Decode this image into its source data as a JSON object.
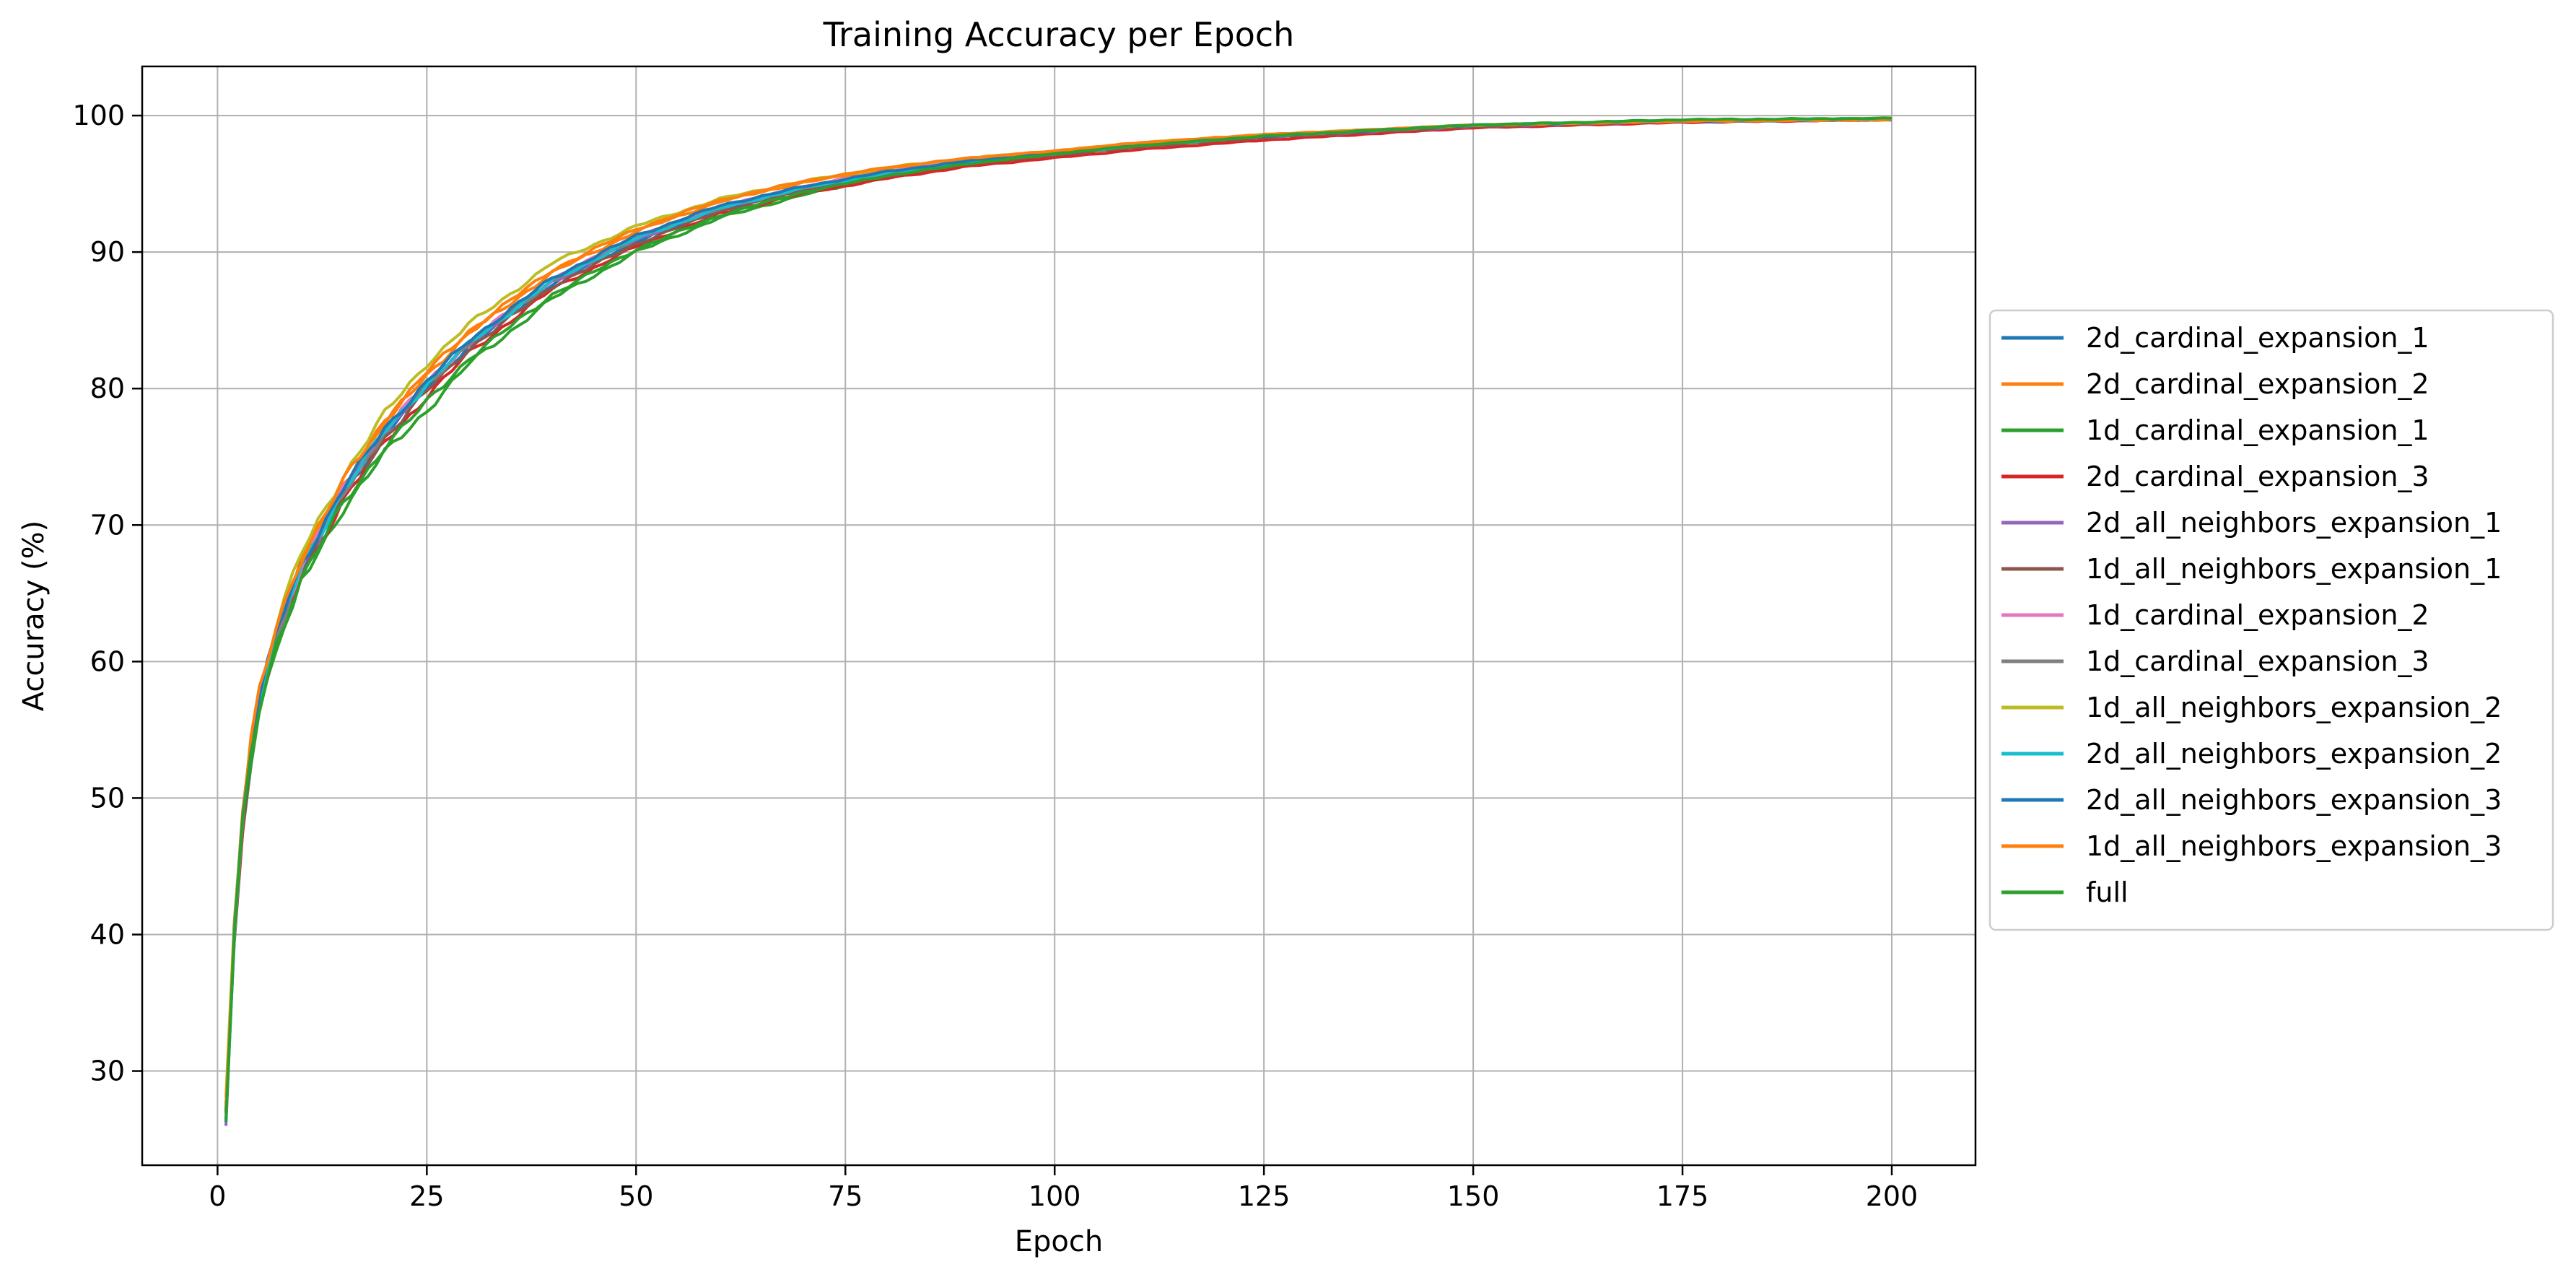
{
  "chart_data": {
    "type": "line",
    "title": "Training Accuracy per Epoch",
    "xlabel": "Epoch",
    "ylabel": "Accuracy (%)",
    "xlim": [
      -9,
      210
    ],
    "ylim": [
      23.1,
      103.6
    ],
    "xticks": [
      0,
      25,
      50,
      75,
      100,
      125,
      150,
      175,
      200
    ],
    "yticks": [
      30,
      40,
      50,
      60,
      70,
      80,
      90,
      100
    ],
    "grid": true,
    "legend_position": "outside-right",
    "x": [
      1,
      2,
      3,
      4,
      5,
      7,
      10,
      15,
      20,
      25,
      30,
      40,
      50,
      60,
      70,
      80,
      90,
      100,
      110,
      125,
      150,
      175,
      200
    ],
    "series": [
      {
        "name": "2d_cardinal_expansion_1",
        "color": "#1f77b4",
        "values": [
          26.6,
          40.2,
          48.2,
          53.5,
          57.0,
          61.7,
          66.7,
          72.3,
          76.7,
          80.1,
          83.1,
          87.7,
          90.8,
          93.1,
          94.6,
          95.7,
          96.6,
          97.2,
          97.8,
          98.5,
          99.3,
          99.6,
          99.7
        ]
      },
      {
        "name": "2d_cardinal_expansion_2",
        "color": "#ff7f0e",
        "values": [
          27.0,
          40.6,
          48.6,
          54.0,
          57.5,
          62.3,
          67.4,
          73.0,
          77.5,
          81.0,
          84.0,
          88.5,
          91.5,
          93.7,
          95.1,
          96.1,
          96.9,
          97.4,
          98.0,
          98.6,
          99.3,
          99.6,
          99.7
        ]
      },
      {
        "name": "1d_cardinal_expansion_1",
        "color": "#2ca02c",
        "values": [
          26.8,
          40.0,
          47.8,
          53.0,
          56.4,
          61.0,
          65.8,
          71.2,
          75.3,
          78.4,
          81.8,
          86.6,
          90.0,
          92.5,
          94.2,
          95.5,
          96.4,
          97.1,
          97.7,
          98.4,
          99.2,
          99.6,
          99.8
        ]
      },
      {
        "name": "2d_cardinal_expansion_3",
        "color": "#d62728",
        "values": [
          26.9,
          40.1,
          48.0,
          53.2,
          56.7,
          61.4,
          66.3,
          71.8,
          76.1,
          79.4,
          82.6,
          87.3,
          90.4,
          92.8,
          94.3,
          95.4,
          96.3,
          96.9,
          97.5,
          98.2,
          99.1,
          99.5,
          99.7
        ]
      },
      {
        "name": "2d_all_neighbors_expansion_1",
        "color": "#9467bd",
        "values": [
          27.0,
          40.3,
          48.3,
          53.6,
          57.1,
          61.8,
          66.8,
          72.4,
          76.8,
          80.2,
          83.2,
          87.8,
          90.9,
          93.2,
          94.7,
          95.8,
          96.6,
          97.2,
          97.8,
          98.4,
          99.2,
          99.6,
          99.7
        ]
      },
      {
        "name": "1d_all_neighbors_expansion_1",
        "color": "#8c564b",
        "values": [
          26.9,
          40.2,
          48.1,
          53.4,
          56.9,
          61.6,
          66.6,
          72.1,
          76.4,
          79.8,
          82.9,
          87.5,
          90.6,
          93.0,
          94.5,
          95.6,
          96.5,
          97.1,
          97.7,
          98.4,
          99.2,
          99.6,
          99.7
        ]
      },
      {
        "name": "1d_cardinal_expansion_2",
        "color": "#e377c2",
        "values": [
          27.1,
          40.4,
          48.4,
          53.7,
          57.2,
          62.0,
          67.0,
          72.6,
          77.0,
          80.4,
          83.4,
          88.0,
          91.1,
          93.3,
          94.8,
          95.9,
          96.7,
          97.3,
          97.9,
          98.5,
          99.3,
          99.6,
          99.7
        ]
      },
      {
        "name": "1d_cardinal_expansion_3",
        "color": "#7f7f7f",
        "values": [
          27.0,
          40.3,
          48.2,
          53.5,
          57.0,
          61.8,
          66.8,
          72.4,
          76.8,
          80.3,
          83.3,
          87.9,
          91.0,
          93.2,
          94.7,
          95.8,
          96.6,
          97.2,
          97.8,
          98.5,
          99.3,
          99.6,
          99.7
        ]
      },
      {
        "name": "1d_all_neighbors_expansion_2",
        "color": "#bcbd22",
        "values": [
          27.2,
          40.8,
          48.9,
          54.3,
          57.9,
          62.8,
          67.9,
          73.6,
          78.2,
          81.8,
          84.7,
          89.2,
          91.9,
          93.9,
          95.2,
          96.2,
          96.9,
          97.4,
          98.0,
          98.6,
          99.3,
          99.6,
          99.7
        ]
      },
      {
        "name": "2d_all_neighbors_expansion_2",
        "color": "#17becf",
        "values": [
          26.7,
          40.3,
          48.3,
          53.6,
          57.1,
          61.9,
          66.9,
          72.5,
          76.9,
          80.3,
          83.3,
          87.9,
          91.0,
          93.2,
          94.7,
          95.8,
          96.6,
          97.2,
          97.8,
          98.5,
          99.3,
          99.6,
          99.7
        ]
      },
      {
        "name": "2d_all_neighbors_expansion_3",
        "color": "#1f77b4",
        "values": [
          26.9,
          40.4,
          48.4,
          53.7,
          57.3,
          62.1,
          67.1,
          72.7,
          77.1,
          80.5,
          83.5,
          88.1,
          91.2,
          93.4,
          94.8,
          95.9,
          96.7,
          97.3,
          97.9,
          98.5,
          99.3,
          99.6,
          99.7
        ]
      },
      {
        "name": "1d_all_neighbors_expansion_3",
        "color": "#ff7f0e",
        "values": [
          27.1,
          40.6,
          48.7,
          54.1,
          57.7,
          62.5,
          67.6,
          73.2,
          77.7,
          81.2,
          84.2,
          88.7,
          91.7,
          93.8,
          95.2,
          96.2,
          96.9,
          97.4,
          98.0,
          98.6,
          99.3,
          99.6,
          99.7
        ]
      },
      {
        "name": "full",
        "color": "#2ca02c",
        "values": [
          26.8,
          40.0,
          47.9,
          53.1,
          56.5,
          61.2,
          66.1,
          71.5,
          75.8,
          79.0,
          82.2,
          86.9,
          90.2,
          92.7,
          94.4,
          95.6,
          96.5,
          97.2,
          97.8,
          98.5,
          99.3,
          99.7,
          99.8
        ]
      }
    ]
  }
}
